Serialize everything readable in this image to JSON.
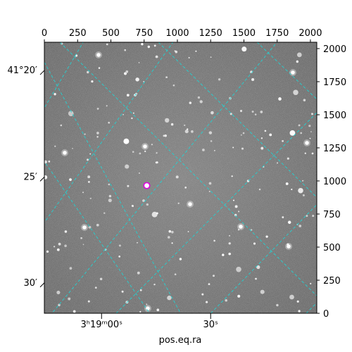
{
  "image": {
    "description_kind": "astronomical-grayscale-starfield",
    "colors": {
      "sky_background": "#707070",
      "grid_lines": "#22d3d3",
      "marker": "#e000e0",
      "frame": "#000000"
    },
    "target_marker": {
      "x_pix": 770,
      "y_pix": 965
    }
  },
  "axes": {
    "xlabel": "pos.eq.ra",
    "top_ticks": [
      "0",
      "250",
      "500",
      "750",
      "1000",
      "1250",
      "1500",
      "1750",
      "2000"
    ],
    "top_tick_values": [
      0,
      250,
      500,
      750,
      1000,
      1250,
      1500,
      1750,
      2000
    ],
    "right_ticks": [
      "0",
      "250",
      "500",
      "750",
      "1000",
      "1250",
      "1500",
      "1750",
      "2000"
    ],
    "right_tick_values": [
      0,
      250,
      500,
      750,
      1000,
      1250,
      1500,
      1750,
      2000
    ],
    "pixel_range": [
      0,
      2048
    ],
    "ra_labels": [
      {
        "text": "3ʰ19ᵐ00ˢ",
        "x_pix": 430
      },
      {
        "text": "30ˢ",
        "x_pix": 1250
      }
    ],
    "dec_labels": [
      {
        "text": "41°20′",
        "y_pix": 1835
      },
      {
        "text": "25′",
        "y_pix": 1030
      },
      {
        "text": "30′",
        "y_pix": 230
      }
    ]
  }
}
